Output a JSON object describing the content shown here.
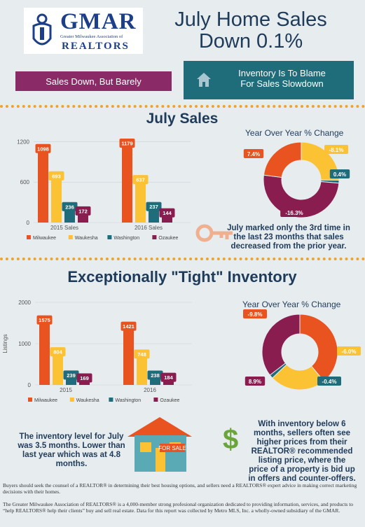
{
  "logo": {
    "name": "GMAR",
    "subtitle": "Greater Milwaukee Association of",
    "realtors": "REALTORS"
  },
  "headline": {
    "line1": "July Home Sales",
    "line2": "Down 0.1%"
  },
  "tags": {
    "left": "Sales Down, But Barely",
    "right_line1": "Inventory Is To Blame",
    "right_line2": "For Sales Slowdown"
  },
  "sections": {
    "sales_title": "July Sales",
    "inventory_title": "Exceptionally \"Tight\" Inventory"
  },
  "pie_title": "Year Over Year % Change",
  "sales_note": {
    "line1": "July marked only the 3rd time in",
    "line2": "the last 23 months that sales",
    "line3": "decreased from the prior year."
  },
  "inventory_note": {
    "line1": "The inventory level for July",
    "line2": "was 3.5 months. Lower than",
    "line3": "last year which was at 4.8",
    "line4": "months."
  },
  "seller_note": {
    "line1": "With inventory below 6",
    "line2": "months, sellers often see",
    "line3": "higher prices from their",
    "line4": "REALTOR® recommended",
    "line5": "listing price, where the",
    "line6": "price of a property is bid up",
    "line7": "in offers and counter-offers."
  },
  "for_sale_sign": "FOR SALE",
  "colors": {
    "milwaukee": "#e8531f",
    "waukesha": "#fbc233",
    "washington": "#1f6c7a",
    "ozaukee": "#8a1d4f"
  },
  "footer": {
    "p1": "Buyers should seek the counsel of a REALTOR® in determining their best housing options, and sellers need a REALTORS® expert advice in making correct marketing decisions with their homes.",
    "p2": "The Greater Milwaukee Association of REALTORS® is a 4,000-member strong profesional organization dedicated to providing information, services, and products to “help REALTORS® help their clients” buy and sell real estate.  Data for this report was collected by Metro MLS, Inc. a wholly-owned subsidiary of the GMAR."
  },
  "chart_data": [
    {
      "type": "bar",
      "categories": [
        "2015 Sales",
        "2016 Sales"
      ],
      "series": [
        {
          "name": "Milwaukee",
          "values": [
            1098,
            1179
          ]
        },
        {
          "name": "Waukesha",
          "values": [
            693,
            637
          ]
        },
        {
          "name": "Washington",
          "values": [
            236,
            237
          ]
        },
        {
          "name": "Ozaukee",
          "values": [
            172,
            144
          ]
        }
      ],
      "ylim": [
        0,
        1350
      ],
      "yticks": [
        "0",
        "600",
        "1200"
      ]
    },
    {
      "type": "pie",
      "title": "Year Over Year % Change",
      "labels": [
        "-8.1%",
        "0.4%",
        "-16.3%",
        "7.4%"
      ],
      "slices": [
        {
          "name": "Waukesha",
          "value": 8.1
        },
        {
          "name": "Washington",
          "value": 0.4
        },
        {
          "name": "Ozaukee",
          "value": 16.3
        },
        {
          "name": "Milwaukee",
          "value": 7.4
        }
      ]
    },
    {
      "type": "bar",
      "categories": [
        "2015",
        "2016"
      ],
      "ylabel": "Listings",
      "series": [
        {
          "name": "Milwaukee",
          "values": [
            1575,
            1421
          ]
        },
        {
          "name": "Waukesha",
          "values": [
            804,
            748
          ]
        },
        {
          "name": "Washington",
          "values": [
            239,
            238
          ]
        },
        {
          "name": "Ozaukee",
          "values": [
            169,
            184
          ]
        }
      ],
      "ylim": [
        0,
        2000
      ],
      "yticks": [
        "0",
        "1000",
        "2000"
      ]
    },
    {
      "type": "pie",
      "title": "Year Over Year % Change",
      "labels": [
        "-9.8%",
        "-6.0%",
        "-0.4%",
        "8.9%"
      ],
      "slices": [
        {
          "name": "Milwaukee",
          "value": 9.8
        },
        {
          "name": "Waukesha",
          "value": 6.0
        },
        {
          "name": "Washington",
          "value": 0.4
        },
        {
          "name": "Ozaukee",
          "value": 8.9
        }
      ]
    }
  ]
}
